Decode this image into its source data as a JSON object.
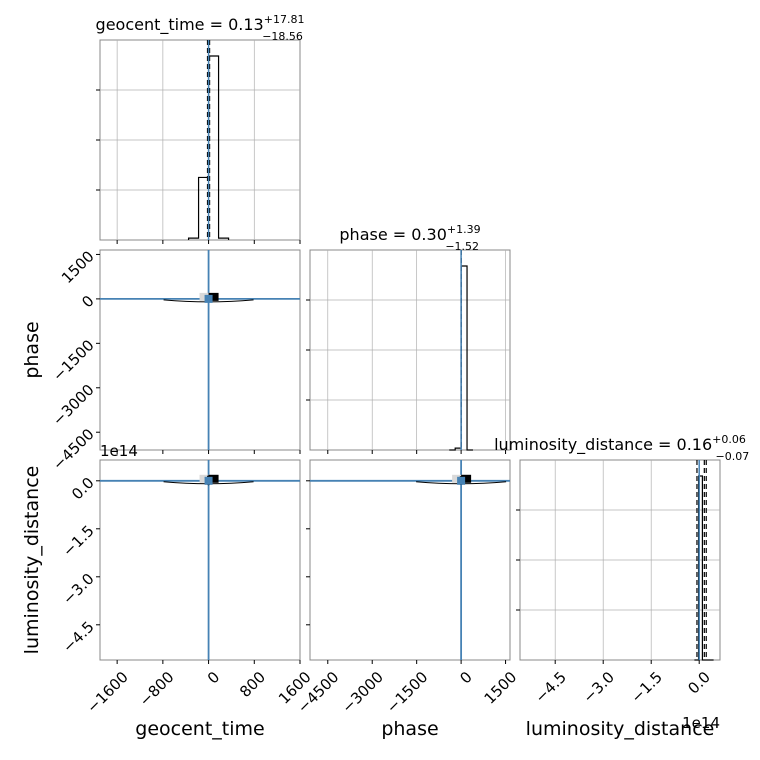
{
  "figure": {
    "background": "#ffffff",
    "truth_color": "#4682b4",
    "hist_color": "#000000",
    "grid_color": "#b0b0b0"
  },
  "chart_data": {
    "type": "corner",
    "parameters": [
      "geocent_time",
      "phase",
      "luminosity_distance"
    ],
    "axis_labels": {
      "x": [
        "geocent_time",
        "phase",
        "luminosity_distance"
      ],
      "y": [
        "phase",
        "luminosity_distance"
      ]
    },
    "titles": [
      {
        "name": "geocent_time",
        "median": "0.13",
        "plus": "+17.81",
        "minus": "−18.56"
      },
      {
        "name": "phase",
        "median": "0.30",
        "plus": "+1.39",
        "minus": "−1.52"
      },
      {
        "name": "luminosity_distance",
        "median": "0.16",
        "plus": "+0.06",
        "minus": "−0.07"
      }
    ],
    "scale_labels": {
      "y_row3": "1e14",
      "x_col3": "1e14"
    },
    "ranges": {
      "geocent_time": [
        -1900,
        1600
      ],
      "phase": [
        -5100,
        1650
      ],
      "luminosity_distance": [
        -5.6,
        0.65
      ]
    },
    "ticks": {
      "geocent_time": [
        -1600,
        -800,
        0,
        800,
        1600
      ],
      "phase": [
        -4500,
        -3000,
        -1500,
        0,
        1500
      ],
      "luminosity_distance": [
        -4.5,
        -3.0,
        -1.5,
        0.0
      ]
    },
    "tick_labels": {
      "geocent_time": [
        "−1600",
        "−800",
        "0",
        "800",
        "1600"
      ],
      "phase": [
        "−4500",
        "−3000",
        "−1500",
        "0",
        "1500"
      ],
      "luminosity_distance": [
        "−4.5",
        "−3.0",
        "−1.5",
        "0.0"
      ]
    },
    "truths": {
      "geocent_time": 0,
      "phase": 0,
      "luminosity_distance": 0
    },
    "histograms": [
      {
        "param": "geocent_time",
        "bin_edges": [
          -350,
          -175,
          0,
          175,
          350
        ],
        "counts": [
          0.01,
          0.34,
          1.0,
          0.01
        ],
        "quantiles": [
          -18.56,
          0.13,
          17.81
        ]
      },
      {
        "param": "phase",
        "bin_edges": [
          -400,
          -200,
          0,
          200,
          400
        ],
        "counts": [
          0.0,
          0.01,
          1.0,
          0.0
        ],
        "quantiles": [
          -1.52,
          0.3,
          1.39
        ]
      },
      {
        "param": "luminosity_distance",
        "bin_edges": [
          -0.15,
          -0.02,
          0.1,
          0.28,
          0.45
        ],
        "counts": [
          0.0,
          1.0,
          0.0,
          0.0
        ],
        "quantiles": [
          -0.07,
          0.16,
          0.22
        ]
      }
    ],
    "scatter": [
      {
        "x": "geocent_time",
        "y": "phase",
        "points": [
          [
            -30,
            0
          ],
          [
            40,
            0
          ],
          [
            0,
            40
          ],
          [
            0,
            -30
          ]
        ]
      },
      {
        "x": "geocent_time",
        "y": "luminosity_distance",
        "points": [
          [
            -30,
            0
          ],
          [
            40,
            0
          ],
          [
            0,
            0.12
          ],
          [
            0,
            -0.09
          ]
        ]
      },
      {
        "x": "phase",
        "y": "luminosity_distance",
        "points": [
          [
            -15,
            0
          ],
          [
            20,
            0
          ],
          [
            0,
            0.1
          ],
          [
            0,
            -0.08
          ]
        ]
      }
    ],
    "grid": true
  }
}
